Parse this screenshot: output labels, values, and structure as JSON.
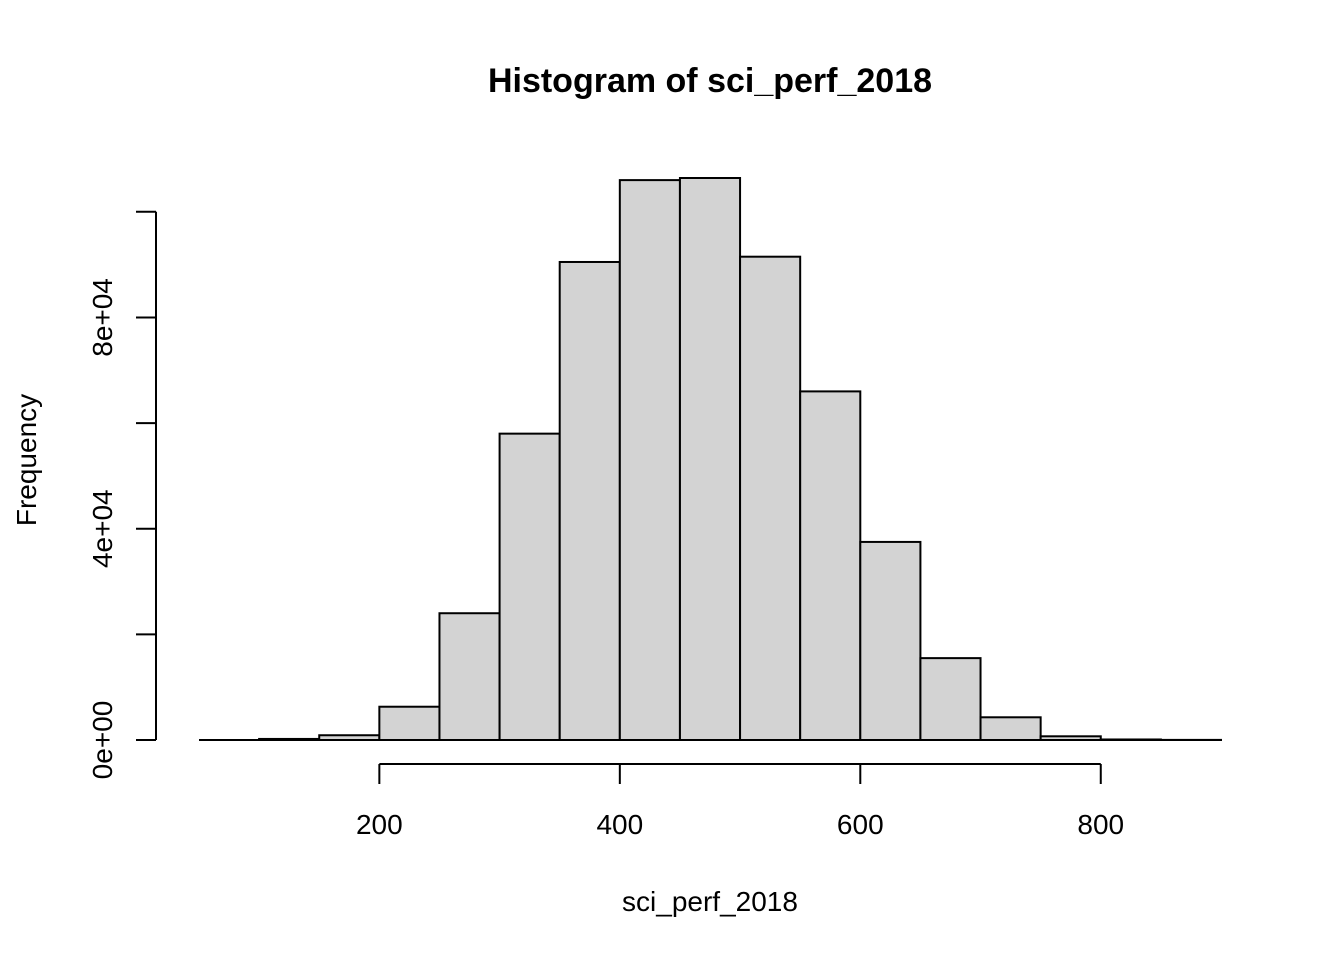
{
  "chart_data": {
    "type": "bar",
    "subtype": "histogram",
    "title": "Histogram of sci_perf_2018",
    "xlabel": "sci_perf_2018",
    "ylabel": "Frequency",
    "bin_edges": [
      100,
      150,
      200,
      250,
      300,
      350,
      400,
      450,
      500,
      550,
      600,
      650,
      700,
      750,
      800,
      850,
      900
    ],
    "values": [
      200,
      900,
      6300,
      24000,
      58000,
      90500,
      106000,
      106400,
      91500,
      66000,
      37500,
      15500,
      4300,
      700,
      100,
      20
    ],
    "xlim": [
      50,
      900
    ],
    "ylim": [
      0,
      106400
    ],
    "x_ticks": [
      200,
      400,
      600,
      800
    ],
    "x_tick_labels": [
      "200",
      "400",
      "600",
      "800"
    ],
    "y_ticks": [
      0,
      20000,
      40000,
      60000,
      80000,
      100000
    ],
    "y_tick_labels": [
      "0e+00",
      "",
      "4e+04",
      "",
      "8e+04",
      ""
    ],
    "bar_color": "#d3d3d3",
    "grid": false,
    "legend": "none"
  }
}
